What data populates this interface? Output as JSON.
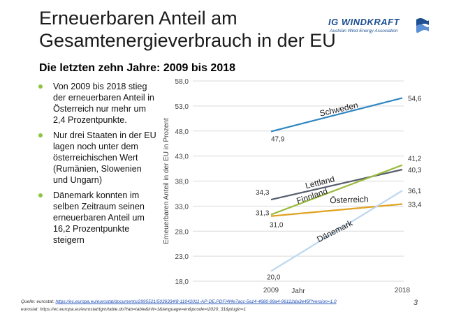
{
  "slide": {
    "title_line1": "Erneuerbaren Anteil am",
    "title_line2": "Gesamtenergieverbrauch in der EU",
    "subtitle": "Die letzten zehn Jahre: 2009 bis 2018",
    "page_number": "3"
  },
  "logo": {
    "main": "IG WINDKRAFT",
    "sub": "Austrian Wind Energy Association",
    "icon": "windmill-flag-icon"
  },
  "bullets": [
    "Von 2009 bis 2018 stieg der erneuerbaren Anteil in Österreich nur mehr um 2,4 Prozentpunkte.",
    "Nur drei Staaten in der EU lagen noch unter dem österreichischen Wert (Rumänien, Slowenien und Ungarn)",
    "Dänemark konnten im selben Zeitraum seinen erneuerbaren Anteil um 16,2 Prozentpunkte steigern"
  ],
  "source": {
    "label1": "Quelle: eurostat: ",
    "link1": "https://ec.europa.eu/eurostat/documents/2995521/5036334/8-11042011-AP-DE.PDF/4f4e7acc-5a14-4680-99a4-96122da3e45f?version=1.0",
    "line2": "eurostat: https://ec.europa.eu/eurostat/tgm/table.do?tab=table&init=1&language=en&pcode=t2020_31&plugin=1"
  },
  "colors": {
    "bullet": "#8cc63f",
    "Schweden": "#2e86c1",
    "Lettland": "#555e6e",
    "Finnland": "#9bbb3c",
    "Österreich": "#e0a21f",
    "Dänemark": "#bcd7ee",
    "grid": "#d9d9d9",
    "logo": "#1d4f91"
  },
  "chart_data": {
    "type": "line",
    "x": [
      "2009",
      "2018"
    ],
    "xlabel": "Jahr",
    "ylabel": "Erneuerbaren Anteil in der EU in Prozent",
    "ylim": [
      18.0,
      58.0
    ],
    "yticks": [
      "18,0",
      "23,0",
      "28,0",
      "33,0",
      "38,0",
      "43,0",
      "48,0",
      "53,0",
      "58,0"
    ],
    "grid": true,
    "legend": "inline labels",
    "series": [
      {
        "name": "Schweden",
        "values": [
          47.9,
          54.6
        ],
        "labels": [
          "47,9",
          "54,6"
        ]
      },
      {
        "name": "Lettland",
        "values": [
          34.3,
          40.3
        ],
        "labels": [
          "34,3",
          "40,3"
        ]
      },
      {
        "name": "Finnland",
        "values": [
          31.3,
          41.2
        ],
        "labels": [
          "31,3",
          "41,2"
        ]
      },
      {
        "name": "Österreich",
        "values": [
          31.0,
          33.4
        ],
        "labels": [
          "31,0",
          "33,4"
        ]
      },
      {
        "name": "Dänemark",
        "values": [
          20.0,
          36.1
        ],
        "labels": [
          "20,0",
          "36,1"
        ]
      }
    ]
  }
}
